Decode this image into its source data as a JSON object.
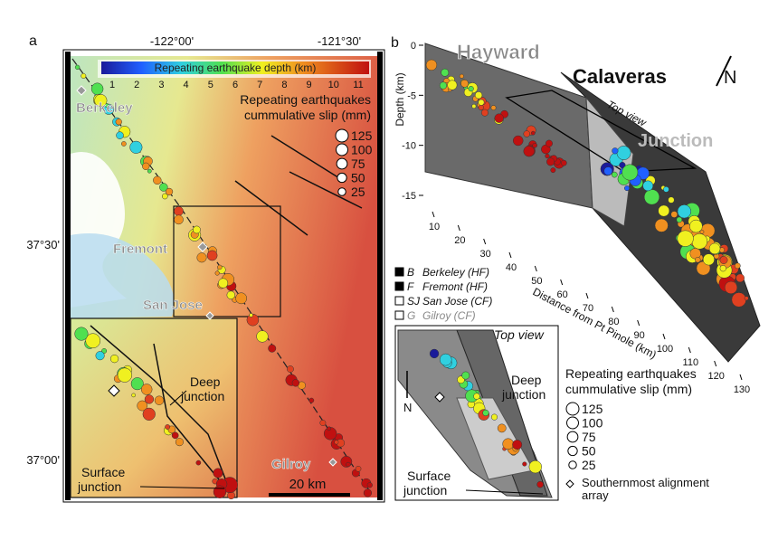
{
  "panel_a": {
    "label": "a",
    "lon_ticks": [
      "-122°00'",
      "-121°30'"
    ],
    "lat_ticks": [
      "37°30'",
      "37°00'"
    ],
    "colorbar": {
      "title": "Repeating earthquake depth (km)",
      "ticks": [
        1,
        2,
        3,
        4,
        5,
        6,
        7,
        8,
        9,
        10,
        11
      ]
    },
    "slip_legend": {
      "title": [
        "Repeating earthquakes",
        "cummulative slip (mm)"
      ],
      "sizes": [
        125,
        100,
        75,
        50,
        25
      ]
    },
    "places": [
      "Berkeley",
      "Fremont",
      "San Jose",
      "Gilroy"
    ],
    "deep_junction": [
      "Deep",
      "junction"
    ],
    "surface_junction": [
      "Surface",
      "junction"
    ],
    "scale": "20 km"
  },
  "panel_b": {
    "label": "b",
    "faults": [
      "Hayward",
      "Calaveras"
    ],
    "north": "N",
    "top_view": "Top view",
    "junction": "Junction",
    "depth_axis": {
      "label": "Depth (km)",
      "ticks": [
        0,
        -5,
        -10,
        -15
      ]
    },
    "distance_axis": {
      "label": "Distance from Pt Pinole (km)",
      "ticks": [
        10,
        20,
        30,
        40,
        50,
        60,
        70,
        80,
        90,
        100,
        110,
        120,
        130
      ]
    },
    "sites": [
      {
        "code": "B",
        "name": "Berkeley (HF)"
      },
      {
        "code": "F",
        "name": "Fremont (HF)"
      },
      {
        "code": "SJ",
        "name": "San Jose (CF)"
      },
      {
        "code": "G",
        "name": "Gilroy (CF)"
      }
    ],
    "inset": {
      "title": "Top view",
      "north": "N",
      "deep_junction": [
        "Deep",
        "junction"
      ],
      "surface_junction": [
        "Surface",
        "junction"
      ]
    },
    "slip_legend": {
      "title": [
        "Repeating earthquakes",
        "cummulative slip (mm)"
      ],
      "sizes": [
        125,
        100,
        75,
        50,
        25
      ],
      "array": [
        "Southernmost alignment",
        "array"
      ]
    }
  }
}
